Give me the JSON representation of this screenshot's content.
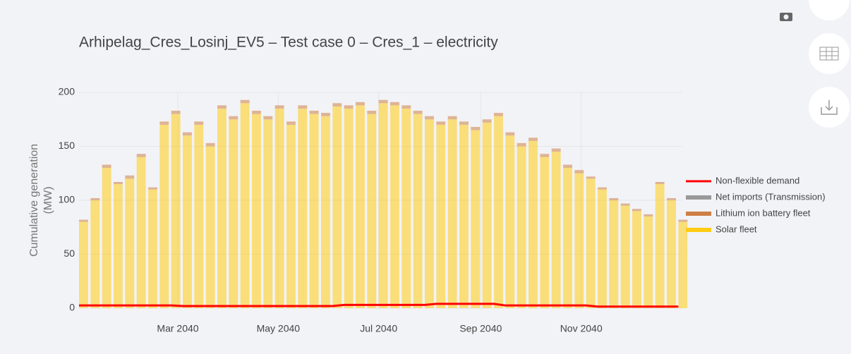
{
  "chart_data": {
    "type": "stacked-spikes",
    "title": "Arhipelag_Cres_Losinj_EV5 – Test case 0 – Cres_1 – electricity",
    "y_label": "Cumulative generation (MW)",
    "x": [
      0,
      7,
      14,
      21,
      28,
      35,
      42,
      49,
      56,
      63,
      70,
      77,
      84,
      91,
      98,
      105,
      112,
      119,
      126,
      133,
      140,
      147,
      154,
      161,
      168,
      175,
      182,
      189,
      196,
      203,
      210,
      217,
      224,
      231,
      238,
      245,
      252,
      259,
      266,
      273,
      280,
      287,
      294,
      301,
      308,
      315,
      322,
      329,
      336,
      343,
      350,
      357,
      364
    ],
    "xlim": [
      0,
      366
    ],
    "xticks": [
      {
        "value": 60,
        "label": "Mar 2040"
      },
      {
        "value": 121,
        "label": "May 2040"
      },
      {
        "value": 182,
        "label": "Jul 2040"
      },
      {
        "value": 244,
        "label": "Sep 2040"
      },
      {
        "value": 305,
        "label": "Nov 2040"
      }
    ],
    "ylim": [
      0,
      200
    ],
    "yticks": [
      0,
      50,
      100,
      150,
      200
    ],
    "grid": true,
    "legend": "right",
    "series": [
      {
        "name": "Non-flexible demand",
        "color": "#ff0000",
        "kind": "line",
        "values": [
          2.5,
          2.5,
          2.5,
          2.5,
          2.5,
          2.5,
          2.5,
          2.5,
          2.5,
          2,
          2,
          2,
          2,
          2,
          2,
          2,
          2,
          2,
          2,
          2,
          2,
          2,
          2,
          3,
          3,
          3,
          3,
          3,
          3,
          3,
          3,
          4,
          4,
          4,
          4,
          4,
          4,
          2.5,
          2.5,
          2.5,
          2.5,
          2.5,
          2.5,
          2.5,
          2.5,
          1.5,
          1.5,
          1.5,
          1.5,
          1.5,
          1.5,
          1.5,
          1.5
        ]
      },
      {
        "name": "Net imports (Transmission)",
        "color": "#999999",
        "kind": "spike",
        "values": [
          0,
          0,
          0,
          0,
          0,
          0,
          0,
          0,
          0,
          0,
          0,
          0,
          0,
          0,
          0,
          0,
          0,
          0,
          0,
          0,
          0,
          0,
          0,
          0,
          0,
          0,
          0,
          0,
          0,
          0,
          0,
          0,
          0,
          0,
          0,
          0,
          0,
          0,
          0,
          0,
          0,
          0,
          0,
          0,
          0,
          0,
          0,
          0,
          0,
          0,
          0,
          0,
          0
        ]
      },
      {
        "name": "Lithium ion battery fleet",
        "color": "#cd7f45",
        "kind": "spike",
        "values": [
          2,
          2,
          3,
          2,
          3,
          3,
          2,
          3,
          3,
          3,
          3,
          3,
          3,
          3,
          3,
          3,
          3,
          3,
          3,
          3,
          3,
          3,
          3,
          3,
          3,
          3,
          3,
          3,
          3,
          3,
          3,
          3,
          3,
          3,
          3,
          3,
          3,
          3,
          3,
          3,
          3,
          3,
          3,
          3,
          2,
          2,
          2,
          2,
          2,
          2,
          2,
          2,
          2
        ]
      },
      {
        "name": "Solar fleet",
        "color": "#ffcc14",
        "kind": "spike",
        "values": [
          80,
          100,
          130,
          115,
          120,
          140,
          110,
          170,
          180,
          160,
          170,
          150,
          185,
          175,
          190,
          180,
          175,
          185,
          170,
          185,
          180,
          178,
          187,
          185,
          188,
          180,
          190,
          188,
          185,
          180,
          175,
          170,
          175,
          170,
          165,
          172,
          178,
          160,
          150,
          155,
          140,
          145,
          130,
          125,
          120,
          110,
          100,
          95,
          90,
          85,
          115,
          100,
          80
        ]
      }
    ]
  }
}
